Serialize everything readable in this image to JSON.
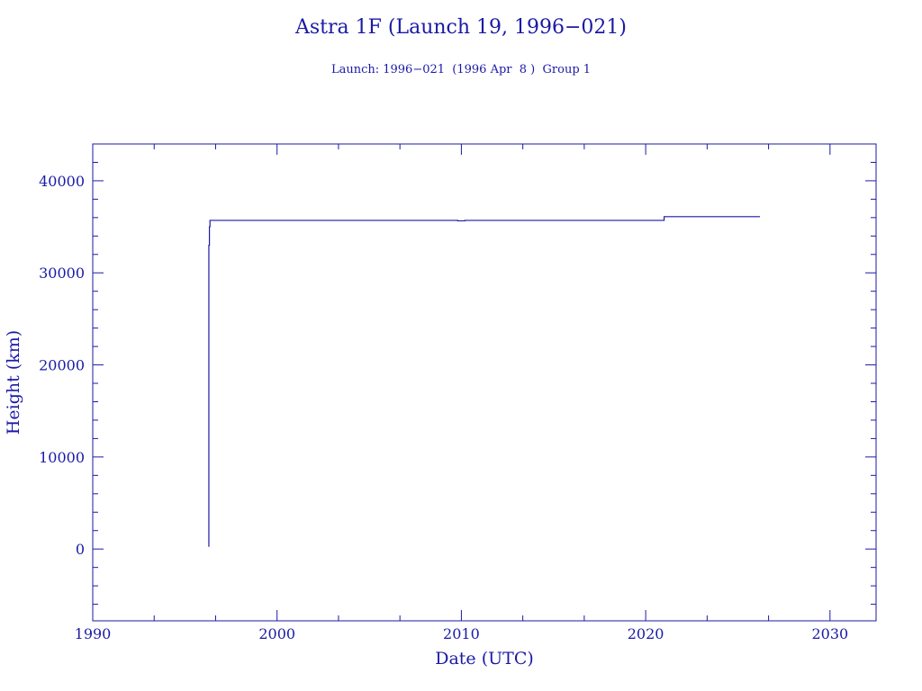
{
  "chart_data": {
    "type": "line",
    "title": "Astra 1F (Launch 19, 1996−021)",
    "subtitle": "Launch: 1996−021  (1996 Apr  8 )  Group 1",
    "xlabel": "Date (UTC)",
    "ylabel": "Height (km)",
    "xlim": [
      1990,
      2032.5
    ],
    "ylim": [
      -7800,
      44000
    ],
    "x_ticks": [
      1990,
      2000,
      2010,
      2020,
      2030
    ],
    "x_tick_labels": [
      "1990",
      "2000",
      "2010",
      "2020",
      "2030"
    ],
    "y_ticks": [
      0,
      10000,
      20000,
      30000,
      40000
    ],
    "y_tick_labels": [
      "0",
      "10000",
      "20000",
      "30000",
      "40000"
    ],
    "grid": false,
    "series": [
      {
        "x": [
          1996.27,
          1996.3,
          1996.33,
          1996.36,
          1996.45,
          2009.7,
          2009.8,
          2010.2,
          2020.9,
          2021.0,
          2026.2
        ],
        "y": [
          300,
          33000,
          35000,
          35700,
          35700,
          35700,
          35650,
          35700,
          35700,
          36100,
          36100
        ]
      }
    ],
    "colors": {
      "ink": "#1a1aa6",
      "line": "#1a1aa6",
      "background": "#ffffff"
    }
  }
}
